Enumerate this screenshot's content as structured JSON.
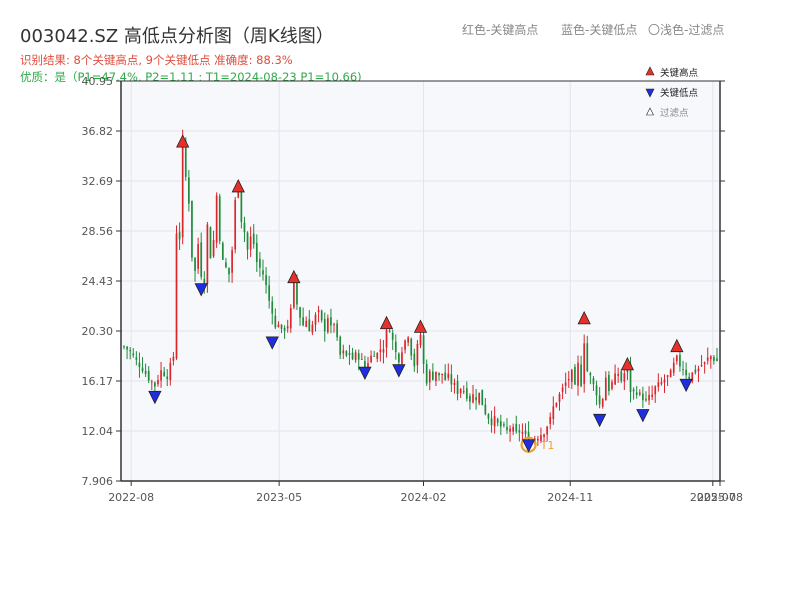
{
  "header": {
    "title": "003042.SZ 高低点分析图（周K线图）",
    "legend_red": "红色-关键高点",
    "legend_blue": "蓝色-关键低点",
    "legend_light": "〇浅色-过滤点",
    "result": "识别结果: 8个关键高点, 9个关键低点   准确度: 88.3%",
    "quality": "优质：是（P1=47.4%, P2=1.11 ; T1=2024-08-23 P1=10.66)"
  },
  "colors": {
    "up": "#d9262b",
    "down": "#1f8a3a",
    "high_marker": "#e8302a",
    "low_marker": "#1f2ee0",
    "filtered": "#f0a030",
    "plot_bg": "#f6f8fb",
    "grid": "#e1e5ec"
  },
  "chart_data": {
    "type": "candlestick",
    "title": "003042.SZ 高低点分析图（周K线图）",
    "x_start": "2022-07",
    "x_end": "2025-07",
    "ylim": [
      7.906,
      40.95
    ],
    "y_ticks": [
      "7.906",
      "12.04",
      "16.17",
      "20.30",
      "24.43",
      "28.56",
      "32.69",
      "36.82",
      "40.95"
    ],
    "x_ticks": [
      {
        "label": "2022-08",
        "t": 0.017
      },
      {
        "label": "2023-05",
        "t": 0.264
      },
      {
        "label": "2024-02",
        "t": 0.505
      },
      {
        "label": "2024-11",
        "t": 0.75
      },
      {
        "label": "2025-07",
        "t": 0.988
      },
      {
        "label": "2025-08",
        "t": 1.0
      }
    ],
    "close_path": [
      [
        0,
        19.0
      ],
      [
        2,
        18.6
      ],
      [
        4,
        17.8
      ],
      [
        6,
        17.2
      ],
      [
        8,
        16.4
      ],
      [
        10,
        15.8
      ],
      [
        12,
        17.0
      ],
      [
        14,
        16.6
      ],
      [
        16,
        18.2
      ],
      [
        17,
        28.5
      ],
      [
        18,
        28.0
      ],
      [
        19,
        36.0
      ],
      [
        20,
        33.0
      ],
      [
        21,
        31.0
      ],
      [
        22,
        26.5
      ],
      [
        23,
        25.2
      ],
      [
        24,
        27.5
      ],
      [
        25,
        25.0
      ],
      [
        26,
        24.3
      ],
      [
        27,
        29.0
      ],
      [
        28,
        26.5
      ],
      [
        29,
        27.8
      ],
      [
        30,
        31.5
      ],
      [
        31,
        28.0
      ],
      [
        32,
        26.0
      ],
      [
        33,
        25.5
      ],
      [
        34,
        25.0
      ],
      [
        35,
        27.0
      ],
      [
        36,
        31.0
      ],
      [
        37,
        32.2
      ],
      [
        38,
        29.5
      ],
      [
        39,
        28.5
      ],
      [
        40,
        27.0
      ],
      [
        41,
        28.0
      ],
      [
        42,
        27.5
      ],
      [
        43,
        26.0
      ],
      [
        44,
        25.5
      ],
      [
        45,
        25.0
      ],
      [
        46,
        24.0
      ],
      [
        47,
        22.8
      ],
      [
        48,
        22.0
      ],
      [
        49,
        20.5
      ],
      [
        50,
        21.0
      ],
      [
        51,
        20.2
      ],
      [
        52,
        20.5
      ],
      [
        53,
        20.8
      ],
      [
        54,
        22.0
      ],
      [
        55,
        24.5
      ],
      [
        56,
        22.5
      ],
      [
        57,
        21.5
      ],
      [
        58,
        20.8
      ],
      [
        59,
        21.2
      ],
      [
        60,
        20.5
      ],
      [
        61,
        20.8
      ],
      [
        62,
        21.5
      ],
      [
        63,
        21.8
      ],
      [
        64,
        21.0
      ],
      [
        65,
        20.5
      ],
      [
        66,
        21.5
      ],
      [
        67,
        20.5
      ],
      [
        68,
        21.0
      ],
      [
        69,
        19.5
      ],
      [
        70,
        18.3
      ],
      [
        71,
        18.5
      ],
      [
        72,
        18.2
      ],
      [
        73,
        18.4
      ],
      [
        74,
        18.0
      ],
      [
        75,
        18.3
      ],
      [
        76,
        18.2
      ],
      [
        77,
        17.8
      ],
      [
        78,
        17.2
      ],
      [
        79,
        17.8
      ],
      [
        80,
        18.2
      ],
      [
        81,
        18.5
      ],
      [
        82,
        18.4
      ],
      [
        83,
        18.8
      ],
      [
        84,
        19.0
      ],
      [
        85,
        20.2
      ],
      [
        86,
        20.5
      ],
      [
        87,
        19.5
      ],
      [
        88,
        18.5
      ],
      [
        89,
        18.0
      ],
      [
        90,
        18.8
      ],
      [
        91,
        19.5
      ],
      [
        92,
        20.0
      ],
      [
        93,
        18.5
      ],
      [
        94,
        17.5
      ],
      [
        95,
        19.0
      ],
      [
        96,
        20.0
      ],
      [
        97,
        17.5
      ],
      [
        98,
        16.2
      ],
      [
        99,
        16.8
      ],
      [
        100,
        16.5
      ],
      [
        101,
        17.0
      ],
      [
        102,
        16.5
      ],
      [
        103,
        16.8
      ],
      [
        104,
        16.3
      ],
      [
        105,
        16.5
      ],
      [
        106,
        16.0
      ],
      [
        107,
        15.8
      ],
      [
        108,
        15.3
      ],
      [
        109,
        15.6
      ],
      [
        110,
        15.4
      ],
      [
        111,
        15.0
      ],
      [
        112,
        14.6
      ],
      [
        113,
        15.0
      ],
      [
        114,
        14.8
      ],
      [
        115,
        15.1
      ],
      [
        116,
        14.3
      ],
      [
        117,
        13.6
      ],
      [
        118,
        13.2
      ],
      [
        119,
        12.8
      ],
      [
        120,
        13.0
      ],
      [
        121,
        12.6
      ],
      [
        122,
        12.4
      ],
      [
        123,
        12.2
      ],
      [
        124,
        12.0
      ],
      [
        125,
        12.3
      ],
      [
        126,
        12.1
      ],
      [
        127,
        11.8
      ],
      [
        128,
        12.0
      ],
      [
        129,
        11.9
      ],
      [
        130,
        11.6
      ],
      [
        131,
        11.4
      ],
      [
        132,
        11.2
      ],
      [
        133,
        11.5
      ],
      [
        134,
        11.6
      ],
      [
        135,
        11.8
      ],
      [
        136,
        12.0
      ],
      [
        137,
        12.5
      ],
      [
        138,
        13.0
      ],
      [
        139,
        14.0
      ],
      [
        140,
        14.5
      ],
      [
        141,
        15.0
      ],
      [
        142,
        15.5
      ],
      [
        143,
        16.0
      ],
      [
        144,
        16.4
      ],
      [
        145,
        16.8
      ],
      [
        146,
        15.6
      ],
      [
        147,
        17.5
      ],
      [
        148,
        16.0
      ],
      [
        149,
        19.5
      ],
      [
        150,
        17.0
      ],
      [
        151,
        16.5
      ],
      [
        152,
        15.8
      ],
      [
        153,
        15.2
      ],
      [
        154,
        14.2
      ],
      [
        155,
        14.8
      ],
      [
        156,
        16.5
      ],
      [
        157,
        15.5
      ],
      [
        158,
        16.0
      ],
      [
        159,
        16.5
      ],
      [
        160,
        16.8
      ],
      [
        161,
        16.2
      ],
      [
        162,
        16.8
      ],
      [
        163,
        17.2
      ],
      [
        164,
        15.4
      ],
      [
        165,
        15.2
      ],
      [
        166,
        15.3
      ],
      [
        167,
        15.0
      ],
      [
        168,
        14.8
      ],
      [
        169,
        14.4
      ],
      [
        170,
        14.8
      ],
      [
        171,
        15.0
      ],
      [
        172,
        15.6
      ],
      [
        173,
        15.8
      ],
      [
        174,
        16.0
      ],
      [
        175,
        16.3
      ],
      [
        176,
        16.5
      ],
      [
        177,
        16.8
      ],
      [
        178,
        17.5
      ],
      [
        179,
        18.0
      ],
      [
        180,
        17.5
      ],
      [
        181,
        17.2
      ],
      [
        182,
        16.8
      ],
      [
        183,
        16.5
      ],
      [
        184,
        16.8
      ],
      [
        185,
        17.0
      ],
      [
        186,
        17.2
      ],
      [
        187,
        17.5
      ],
      [
        188,
        17.6
      ],
      [
        189,
        18.0
      ],
      [
        190,
        18.2
      ],
      [
        191,
        18.0
      ],
      [
        192,
        17.8
      ]
    ],
    "n_bars": 193,
    "key_highs": [
      {
        "i": 19,
        "value": 35.9
      },
      {
        "i": 37,
        "value": 32.2
      },
      {
        "i": 55,
        "value": 24.7
      },
      {
        "i": 85,
        "value": 20.9
      },
      {
        "i": 96,
        "value": 20.6
      },
      {
        "i": 149,
        "value": 21.3
      },
      {
        "i": 163,
        "value": 17.5
      },
      {
        "i": 179,
        "value": 19.0
      }
    ],
    "key_lows": [
      {
        "i": 10,
        "value": 14.9
      },
      {
        "i": 25,
        "value": 23.8
      },
      {
        "i": 48,
        "value": 19.4
      },
      {
        "i": 78,
        "value": 16.9
      },
      {
        "i": 89,
        "value": 17.1
      },
      {
        "i": 131,
        "value": 10.9
      },
      {
        "i": 154,
        "value": 13.0
      },
      {
        "i": 168,
        "value": 13.4
      },
      {
        "i": 182,
        "value": 15.9
      }
    ],
    "filtered_points": [
      {
        "i": 131,
        "value": 10.9,
        "label": "T1"
      }
    ],
    "marker_legend": [
      "关键高点",
      "关键低点",
      "过滤点"
    ]
  }
}
